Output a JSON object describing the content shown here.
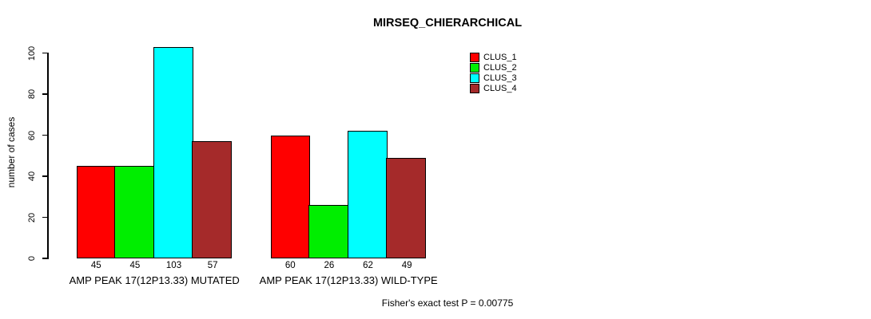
{
  "chart_data": {
    "type": "bar",
    "title": "MIRSEQ_CHIERARCHICAL",
    "ylabel": "number of cases",
    "xlabel": "",
    "categories": [
      "AMP PEAK 17(12P13.33) MUTATED",
      "AMP PEAK 17(12P13.33) WILD-TYPE"
    ],
    "series": [
      {
        "name": "CLUS_1",
        "color": "#ff0000",
        "values": [
          45,
          60
        ]
      },
      {
        "name": "CLUS_2",
        "color": "#00ee00",
        "values": [
          45,
          26
        ]
      },
      {
        "name": "CLUS_3",
        "color": "#00ffff",
        "values": [
          103,
          62
        ]
      },
      {
        "name": "CLUS_4",
        "color": "#a52a2a",
        "values": [
          57,
          49
        ]
      }
    ],
    "yticks": [
      0,
      20,
      40,
      60,
      80,
      100
    ],
    "ylim": [
      0,
      103
    ],
    "grid": false,
    "legend_position": "top-right",
    "bar_value_labels_shown": true,
    "annotation": "Fisher's exact test P = 0.00775"
  },
  "colors": {
    "background": "#ffffff",
    "axis": "#000000",
    "text": "#000000"
  }
}
